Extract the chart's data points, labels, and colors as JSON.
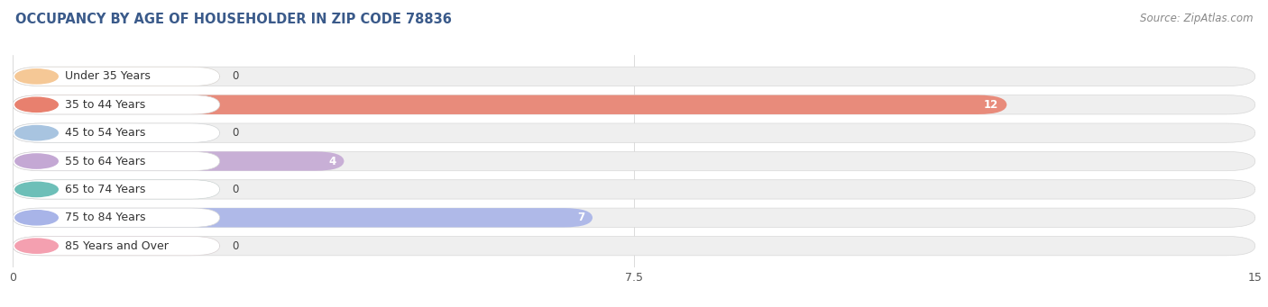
{
  "title": "OCCUPANCY BY AGE OF HOUSEHOLDER IN ZIP CODE 78836",
  "source": "Source: ZipAtlas.com",
  "categories": [
    "Under 35 Years",
    "35 to 44 Years",
    "45 to 54 Years",
    "55 to 64 Years",
    "65 to 74 Years",
    "75 to 84 Years",
    "85 Years and Over"
  ],
  "values": [
    0,
    12,
    0,
    4,
    0,
    7,
    0
  ],
  "bar_colors": [
    "#f5c896",
    "#e8806e",
    "#a8c4e0",
    "#c4a8d4",
    "#6dbfb8",
    "#a8b4e8",
    "#f4a0b0"
  ],
  "xlim": [
    0,
    15
  ],
  "xticks": [
    0,
    7.5,
    15
  ],
  "title_fontsize": 10.5,
  "source_fontsize": 8.5,
  "label_fontsize": 9,
  "value_fontsize": 8.5,
  "bar_height": 0.68,
  "background_color": "#ffffff",
  "bar_bg_color": "#efefef",
  "title_color": "#3a5a8a",
  "source_color": "#888888"
}
